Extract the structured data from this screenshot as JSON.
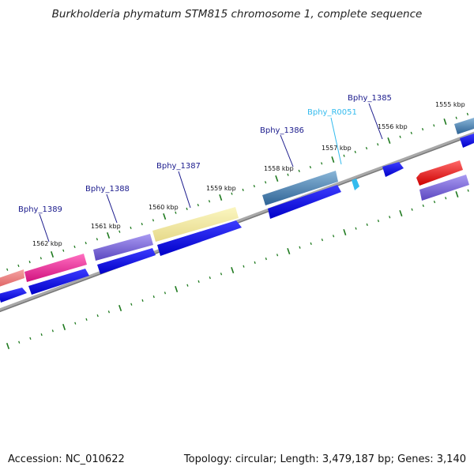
{
  "title": "Burkholderia phymatum STM815 chromosome 1, complete sequence",
  "footer": {
    "accession": "Accession: NC_010622",
    "summary": "Topology: circular; Length: 3,479,187 bp; Genes: 3,140"
  },
  "tick_labels": [
    "1555 kbp",
    "1556 kbp",
    "1557 kbp",
    "1558 kbp",
    "1559 kbp",
    "1560 kbp",
    "1561 kbp",
    "1562 kbp"
  ],
  "gene_labels": [
    {
      "name": "Bphy_1385",
      "color": "#1a1a8c"
    },
    {
      "name": "Bphy_R0051",
      "color": "#33bbee"
    },
    {
      "name": "Bphy_1386",
      "color": "#1a1a8c"
    },
    {
      "name": "Bphy_1387",
      "color": "#1a1a8c"
    },
    {
      "name": "Bphy_1388",
      "color": "#1a1a8c"
    },
    {
      "name": "Bphy_1389",
      "color": "#1a1a8c"
    }
  ],
  "colors": {
    "backbone": "#888888",
    "tick": "#1f7a1f",
    "cds": "#0000ee",
    "trna": "#33bbee"
  }
}
